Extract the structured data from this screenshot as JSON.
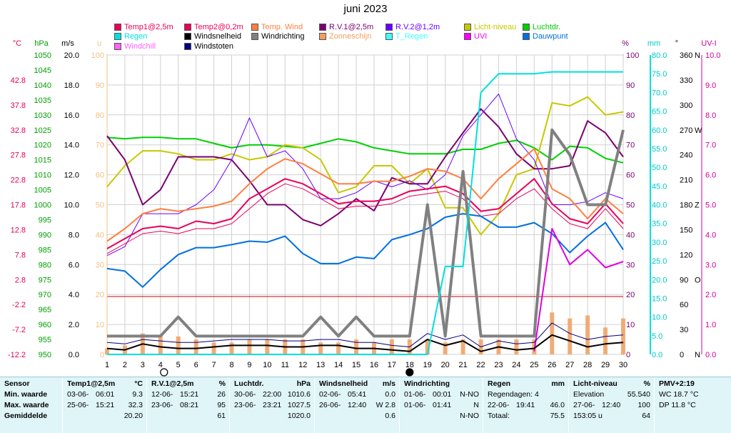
{
  "title": "juni 2023",
  "legend": [
    {
      "label": "Temp1@2,5m",
      "color": "#e8005a"
    },
    {
      "label": "Temp2@0,2m",
      "color": "#e8005a"
    },
    {
      "label": "Temp. Wind",
      "color": "#ff7f40"
    },
    {
      "label": "R.V.1@2,5m",
      "color": "#7a0070"
    },
    {
      "label": "R.V.2@1,2m",
      "color": "#6a00ff"
    },
    {
      "label": "Licht-niveau",
      "color": "#c8c800"
    },
    {
      "label": "Luchtdr.",
      "color": "#00d000"
    },
    {
      "label": "Regen",
      "color": "#00e0e0"
    },
    {
      "label": "Windsnelheid",
      "color": "#000000"
    },
    {
      "label": "Windrichting",
      "color": "#808080"
    },
    {
      "label": "Zonneschijn",
      "color": "#f0a060"
    },
    {
      "label": "T_Regen",
      "color": "#40ffff"
    },
    {
      "label": "UVI",
      "color": "#ff00ff"
    },
    {
      "label": "Dauwpunt",
      "color": "#0070e0"
    },
    {
      "label": "Windchill",
      "color": "#ff60ff"
    },
    {
      "label": "Windstoten",
      "color": "#000080"
    }
  ],
  "axis_headers": {
    "celsius": "°C",
    "hpa": "hPa",
    "ms": "m/s",
    "u": "u",
    "pct": "%",
    "mm": "mm",
    "deg": "°",
    "uvi": "UV-I"
  },
  "chart_data": {
    "type": "line",
    "x": [
      1,
      2,
      3,
      4,
      5,
      6,
      7,
      8,
      9,
      10,
      11,
      12,
      13,
      14,
      15,
      16,
      17,
      18,
      19,
      20,
      21,
      22,
      23,
      24,
      25,
      26,
      27,
      28,
      29,
      30
    ],
    "xlabel": "",
    "ylabel": "",
    "axes": {
      "celsius": {
        "range": [
          -12.2,
          47.8
        ],
        "ticks": [
          "-12.2",
          "-7.2",
          "-2.2",
          "2.8",
          "7.8",
          "12.8",
          "17.8",
          "22.8",
          "27.8",
          "32.8",
          "37.8",
          "42.8"
        ]
      },
      "hpa": {
        "range": [
          950,
          1050
        ],
        "ticks": [
          "950",
          "955",
          "960",
          "965",
          "970",
          "975",
          "980",
          "985",
          "990",
          "995",
          "1000",
          "1005",
          "1010",
          "1015",
          "1020",
          "1025",
          "1030",
          "1035",
          "1040",
          "1045",
          "1050"
        ]
      },
      "ms": {
        "range": [
          0,
          20
        ],
        "ticks": [
          "0.0",
          "2.0",
          "4.0",
          "6.0",
          "8.0",
          "10.0",
          "12.0",
          "14.0",
          "16.0",
          "18.0",
          "20.0"
        ]
      },
      "u": {
        "range": [
          0,
          100
        ],
        "ticks": [
          "0",
          "10",
          "20",
          "30",
          "40",
          "50",
          "60",
          "70",
          "80",
          "90",
          "100"
        ]
      },
      "pct": {
        "range": [
          0,
          100
        ],
        "ticks": [
          "0",
          "10",
          "20",
          "30",
          "40",
          "50",
          "60",
          "70",
          "80",
          "90",
          "100"
        ]
      },
      "mm": {
        "range": [
          0,
          80
        ],
        "ticks": [
          "0.0",
          "5.0",
          "10.0",
          "15.0",
          "20.0",
          "25.0",
          "30.0",
          "35.0",
          "40.0",
          "45.0",
          "50.0",
          "55.0",
          "60.0",
          "65.0",
          "70.0",
          "75.0",
          "80.0"
        ]
      },
      "deg": {
        "range": [
          0,
          360
        ],
        "ticks": [
          "0",
          "30",
          "60",
          "90",
          "120",
          "150",
          "180",
          "210",
          "240",
          "270",
          "300",
          "330",
          "360"
        ],
        "letters": {
          "0": "N",
          "90": "O",
          "180": "Z",
          "270": "W",
          "360": "N"
        }
      },
      "uvi": {
        "range": [
          0,
          10
        ],
        "ticks": [
          "0.0",
          "1.0",
          "2.0",
          "3.0",
          "4.0",
          "5.0",
          "6.0",
          "7.0",
          "8.0",
          "9.0",
          "10.0"
        ]
      }
    },
    "series": [
      {
        "name": "Luchtdr.",
        "axis": "hpa",
        "color": "#00d000",
        "width": 2,
        "values": [
          1022.5,
          1022,
          1022.5,
          1022.5,
          1022,
          1022,
          1020.5,
          1019,
          1020,
          1020,
          1019.5,
          1019,
          1020.5,
          1022,
          1021,
          1019,
          1018,
          1017,
          1017,
          1017,
          1018.5,
          1018.5,
          1020.5,
          1021.5,
          1019,
          1015,
          1019.5,
          1019,
          1015.5,
          1014
        ]
      },
      {
        "name": "Licht-niveau",
        "axis": "u",
        "color": "#c8c800",
        "width": 2,
        "values": [
          56,
          63,
          68,
          68,
          67,
          65,
          65,
          67,
          65,
          66,
          70,
          69,
          65,
          54,
          56,
          63,
          63,
          57,
          62,
          49,
          49,
          40,
          47,
          60,
          62,
          84,
          83,
          86,
          80,
          81
        ]
      },
      {
        "name": "R.V.1@2,5m",
        "axis": "pct",
        "color": "#7a0070",
        "width": 2,
        "values": [
          73,
          65,
          50,
          55,
          66,
          66,
          66,
          65,
          58,
          50,
          50,
          45,
          43,
          47,
          52,
          48,
          59,
          57,
          57,
          66,
          74,
          82,
          76,
          67,
          62,
          62,
          63,
          78,
          74,
          66
        ]
      },
      {
        "name": "R.V.2@1,2m",
        "axis": "pct",
        "color": "#6a00ff",
        "width": 1,
        "values": [
          33,
          36,
          47,
          47,
          47,
          50,
          55,
          65,
          79,
          66,
          68,
          62,
          52,
          52,
          54,
          58,
          56,
          58,
          55,
          60,
          73,
          80,
          87,
          72,
          65,
          50,
          50,
          51,
          54,
          52
        ]
      },
      {
        "name": "Temp. Wind",
        "axis": "celsius",
        "color": "#ff7f40",
        "width": 2,
        "values": [
          10.5,
          13,
          16,
          17,
          16.5,
          17,
          17.5,
          18.5,
          22,
          25,
          27,
          26,
          24,
          22,
          22,
          22.5,
          22.5,
          23.5,
          25,
          24.5,
          23,
          19,
          23,
          26,
          29,
          21,
          19,
          15,
          19,
          16
        ]
      },
      {
        "name": "Temp1@2,5m",
        "axis": "celsius",
        "color": "#e8005a",
        "width": 2,
        "values": [
          9,
          11,
          13,
          13.5,
          13,
          14.5,
          14,
          15,
          19,
          21,
          23,
          22,
          20,
          18,
          18.5,
          18.5,
          19,
          20.5,
          21,
          21.5,
          20,
          16.5,
          17,
          20,
          23,
          18,
          15,
          14,
          18,
          14
        ]
      },
      {
        "name": "Temp2@0,2m",
        "axis": "celsius",
        "color": "#e8005a",
        "width": 1,
        "values": [
          8,
          10,
          12,
          12.5,
          12,
          13,
          13,
          14,
          17,
          20,
          22,
          21,
          19,
          17,
          17.5,
          17.5,
          18,
          19.5,
          20,
          20.5,
          19,
          15.5,
          16,
          19,
          21,
          17,
          14,
          13,
          17,
          13
        ]
      },
      {
        "name": "Dauwpunt",
        "axis": "celsius",
        "color": "#0070e0",
        "width": 2,
        "values": [
          5,
          4.5,
          1.3,
          4.8,
          7.8,
          9.2,
          9.2,
          9.8,
          10.5,
          10.3,
          11.5,
          8,
          6,
          6,
          7.3,
          7,
          10.8,
          11.8,
          13,
          15.3,
          16,
          15.5,
          13.3,
          13.3,
          14.2,
          12,
          8.2,
          11.5,
          14.2,
          8.8
        ]
      },
      {
        "name": "Windrichting",
        "axis": "deg",
        "color": "#808080",
        "width": 4,
        "values": [
          22,
          22,
          22,
          22,
          45,
          22,
          22,
          22,
          22,
          22,
          22,
          22,
          45,
          22,
          45,
          22,
          22,
          22,
          180,
          22,
          220,
          22,
          22,
          22,
          22,
          270,
          240,
          180,
          180,
          270
        ]
      },
      {
        "name": "UVI",
        "axis": "uvi",
        "color": "#e000e0",
        "width": 2,
        "values": [
          null,
          null,
          null,
          null,
          null,
          null,
          null,
          null,
          null,
          null,
          null,
          null,
          null,
          null,
          null,
          null,
          null,
          null,
          null,
          null,
          null,
          null,
          null,
          null,
          0.1,
          4.2,
          3.0,
          3.5,
          2.9,
          3.1
        ]
      },
      {
        "name": "Windsnelheid",
        "axis": "ms",
        "color": "#000000",
        "width": 2,
        "values": [
          0.4,
          0.3,
          0.7,
          0.5,
          0.4,
          0.4,
          0.5,
          0.6,
          0.6,
          0.6,
          0.5,
          0.5,
          0.6,
          0.6,
          0.4,
          0.4,
          0.3,
          0.2,
          1.0,
          0.6,
          0.9,
          0.2,
          0.5,
          0.3,
          0.4,
          1.3,
          0.9,
          0.5,
          0.7,
          0.8
        ]
      },
      {
        "name": "Windstoten",
        "axis": "ms",
        "color": "#000080",
        "width": 1,
        "values": [
          0.8,
          0.7,
          1.0,
          0.9,
          0.8,
          0.8,
          0.9,
          1.0,
          1.0,
          1.0,
          0.9,
          0.9,
          1.0,
          1.0,
          0.8,
          0.8,
          0.6,
          0.5,
          1.4,
          1.0,
          1.3,
          0.5,
          0.9,
          0.7,
          0.8,
          2.1,
          1.4,
          1.0,
          1.2,
          1.3
        ]
      },
      {
        "name": "Regen",
        "axis": "mm",
        "color": "#00e0e0",
        "width": 2,
        "values": [
          0,
          0,
          0,
          0,
          0,
          0,
          0,
          0,
          0,
          0,
          0,
          0,
          0,
          0,
          0,
          0,
          0,
          0,
          0,
          23.5,
          23.5,
          70,
          75,
          75,
          75,
          75.5,
          75.5,
          75.5,
          75.5,
          75.5
        ]
      }
    ],
    "bars": {
      "name": "Zonneschijn",
      "axis": "pct",
      "color": "#f0a060",
      "values": [
        2,
        3,
        7,
        6,
        6,
        5,
        4,
        4,
        5,
        5,
        5,
        5,
        4,
        4,
        5,
        4,
        5,
        5,
        5,
        4,
        5,
        5,
        5,
        5,
        5,
        14,
        12,
        13,
        9,
        12
      ]
    },
    "hlines": [
      {
        "axis": "celsius",
        "value": -0.6,
        "color": "#cc0000"
      }
    ],
    "markers": [
      {
        "x": 4.2,
        "symbol": "new-moon-open"
      },
      {
        "x": 18,
        "symbol": "full-moon-filled"
      }
    ]
  },
  "table": {
    "labels": [
      "Sensor",
      "Min. waarde",
      "Max. waarde",
      "Gemiddelde"
    ],
    "columns": [
      {
        "head": "Temp1@2,5m",
        "unit": "°C",
        "rows": [
          [
            "03-06-",
            "06:01",
            "9.3"
          ],
          [
            "25-06-",
            "15:21",
            "32.3"
          ],
          [
            "",
            "",
            "20.20"
          ]
        ]
      },
      {
        "head": "R.V.1@2,5m",
        "unit": "%",
        "rows": [
          [
            "12-06-",
            "15:21",
            "26"
          ],
          [
            "23-06-",
            "08:21",
            "95"
          ],
          [
            "",
            "",
            "61"
          ]
        ]
      },
      {
        "head": "Luchtdr.",
        "unit": "hPa",
        "rows": [
          [
            "30-06-",
            "22:00",
            "1010.6"
          ],
          [
            "23-06-",
            "23:21",
            "1027.5"
          ],
          [
            "",
            "",
            "1020.0"
          ]
        ]
      },
      {
        "head": "Windsnelheid",
        "unit": "m/s",
        "rows": [
          [
            "02-06-",
            "05:41",
            "0.0"
          ],
          [
            "26-06-",
            "12:40",
            "W 2.8"
          ],
          [
            "",
            "",
            "0.6"
          ]
        ]
      },
      {
        "head": "Windrichting",
        "unit": "",
        "rows": [
          [
            "01-06-",
            "00:01",
            "N-NO"
          ],
          [
            "01-06-",
            "01:41",
            "N"
          ],
          [
            "",
            "",
            "N-NO"
          ]
        ]
      },
      {
        "head": "Regen",
        "unit": "mm",
        "rows": [
          [
            "Regendagen: 4",
            "",
            ""
          ],
          [
            "22-06-",
            "19:41",
            "46.0"
          ],
          [
            "Totaal:",
            "",
            "75.5"
          ]
        ]
      },
      {
        "head": "Licht-niveau",
        "unit": "%",
        "rows": [
          [
            "Elevation",
            "",
            "55.540"
          ],
          [
            "27-06-",
            "12:40",
            "100"
          ],
          [
            "153:05 u",
            "",
            "64"
          ]
        ]
      },
      {
        "head": "PMV+2:19",
        "unit": "",
        "rows": [
          [
            "WC 18.7 °C",
            "",
            ""
          ],
          [
            "DP 11.8 °C",
            "",
            ""
          ],
          [
            "",
            "",
            ""
          ]
        ]
      }
    ]
  }
}
